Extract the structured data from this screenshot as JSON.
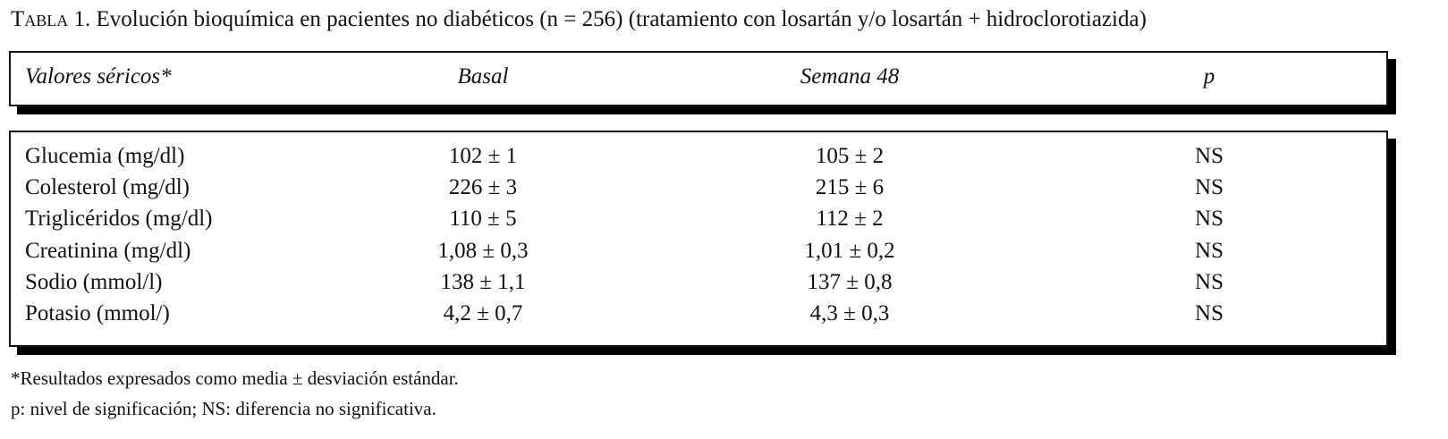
{
  "title": {
    "label": "Tabla 1.",
    "text": "Evolución bioquímica en pacientes no diabéticos (n = 256) (tratamiento con losartán y/o losartán + hidroclorotiazida)"
  },
  "table": {
    "header": [
      "Valores séricos*",
      "Basal",
      "Semana 48",
      "p"
    ],
    "rows": [
      [
        "Glucemia (mg/dl)",
        "102 ± 1",
        "105 ± 2",
        "NS"
      ],
      [
        "Colesterol (mg/dl)",
        "226 ± 3",
        "215 ± 6",
        "NS"
      ],
      [
        "Triglicéridos (mg/dl)",
        "110 ± 5",
        "112 ± 2",
        "NS"
      ],
      [
        "Creatinina (mg/dl)",
        "1,08 ± 0,3",
        "1,01 ± 0,2",
        "NS"
      ],
      [
        "Sodio (mmol/l)",
        "138 ± 1,1",
        "137 ± 0,8",
        "NS"
      ],
      [
        "Potasio (mmol/)",
        "4,2 ± 0,7",
        "4,3 ± 0,3",
        "NS"
      ]
    ]
  },
  "footnotes": [
    "*Resultados expresados como media ± desviación estándar.",
    "p: nivel de significación; NS: diferencia no significativa."
  ]
}
